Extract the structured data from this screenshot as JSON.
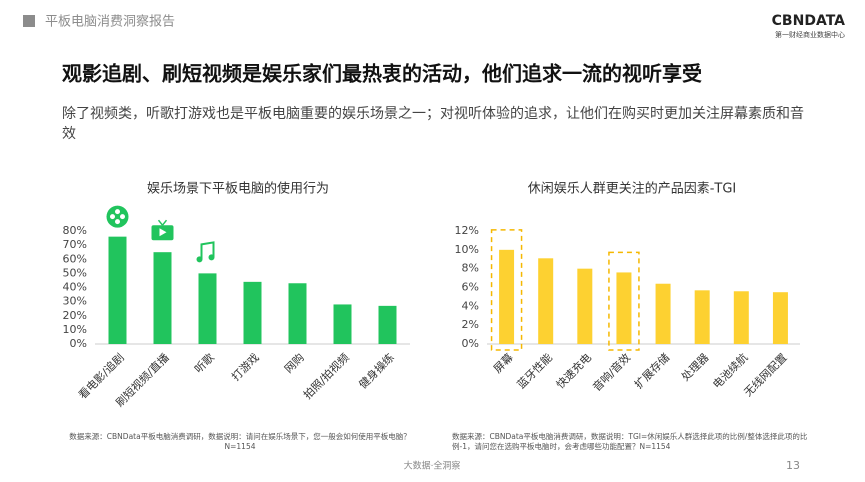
{
  "header": {
    "section": "平板电脑消费洞察报告",
    "logo": "CBNDATA",
    "logo_sub": "第一财经商业数据中心"
  },
  "title": "观影追剧、刷短视频是娱乐家们最热衷的活动，他们追求一流的视听享受",
  "subtitle": "除了视频类，听歌打游戏也是平板电脑重要的娱乐场景之一；对视听体验的追求，让他们在购买时更加关注屏幕素质和音效",
  "chart_data": [
    {
      "type": "bar",
      "title": "娱乐场景下平板电脑的使用行为",
      "categories": [
        "看电影/追剧",
        "刷短视频/直播",
        "听歌",
        "打游戏",
        "网购",
        "拍照/拍视频",
        "健身操练"
      ],
      "values": [
        76,
        65,
        50,
        44,
        43,
        28,
        27
      ],
      "color": "#21c45d",
      "ylim": [
        0,
        80
      ],
      "yticks": [
        {
          "value": 0,
          "label": "0%"
        },
        {
          "value": 10,
          "label": "10%"
        },
        {
          "value": 20,
          "label": "20%"
        },
        {
          "value": 30,
          "label": "30%"
        },
        {
          "value": 40,
          "label": "40%"
        },
        {
          "value": 50,
          "label": "50%"
        },
        {
          "value": 60,
          "label": "60%"
        },
        {
          "value": 70,
          "label": "70%"
        },
        {
          "value": 80,
          "label": "80%"
        }
      ],
      "source": "数据来源：CBNData平板电脑消费调研，数据说明：请问在娱乐场景下，您一般会如何使用平板电脑？N=1154"
    },
    {
      "type": "bar",
      "title": "休闲娱乐人群更关注的产品因素-TGI",
      "categories": [
        "屏幕",
        "蓝牙性能",
        "快速充电",
        "音响/音效",
        "扩展存储",
        "处理器",
        "电池续航",
        "无线网配置"
      ],
      "values": [
        10.0,
        9.1,
        8.0,
        7.6,
        6.4,
        5.7,
        5.6,
        5.5
      ],
      "color": "#fdd131",
      "highlighted": [
        "屏幕",
        "音响/音效"
      ],
      "ylim": [
        0,
        12
      ],
      "yticks": [
        {
          "value": 0,
          "label": "0%"
        },
        {
          "value": 2,
          "label": "2%"
        },
        {
          "value": 4,
          "label": "4%"
        },
        {
          "value": 6,
          "label": "6%"
        },
        {
          "value": 8,
          "label": "8%"
        },
        {
          "value": 10,
          "label": "10%"
        },
        {
          "value": 12,
          "label": "12%"
        }
      ],
      "source": "数据来源：CBNData平板电脑消费调研，数据说明：TGI=休闲娱乐人群选择此项的比例/整体选择此项的比例-1，请问您在选购平板电脑时，会考虑哪些功能配置？N=1154"
    }
  ],
  "footer": {
    "center": "大数据·全洞察",
    "page": "13"
  }
}
